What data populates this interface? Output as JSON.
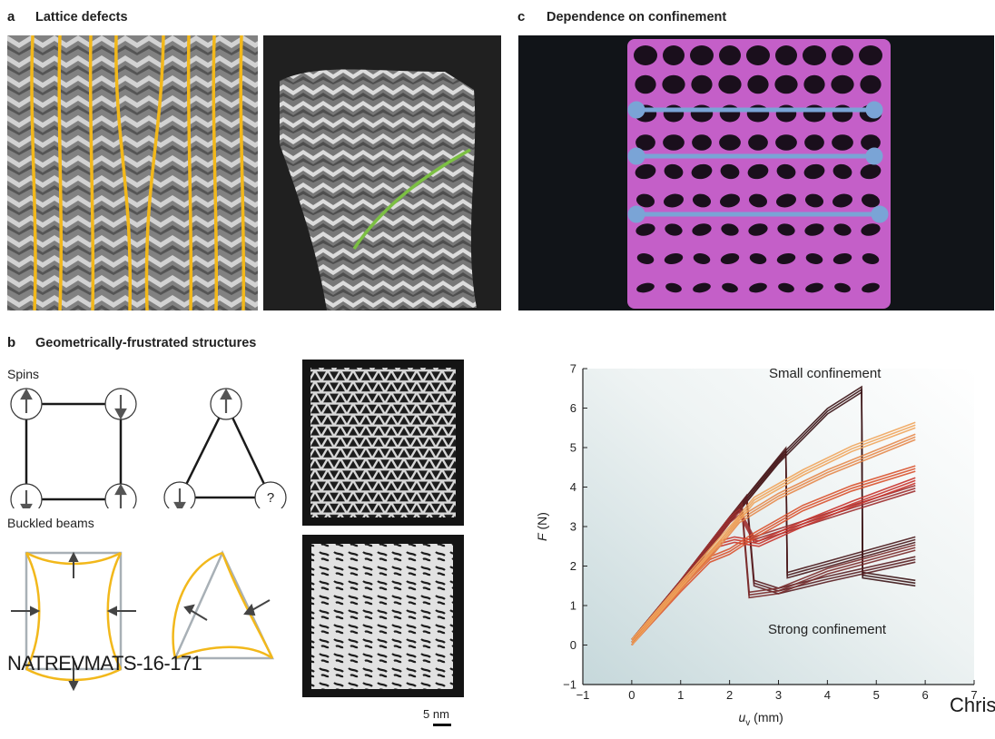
{
  "panel_a": {
    "letter": "a",
    "title": "Lattice defects"
  },
  "panel_b": {
    "letter": "b",
    "title": "Geometrically-frustrated structures",
    "spins_label": "Spins",
    "buckled_label": "Buckled beams",
    "unknown_spin": "?",
    "scale_bar": "5 nm"
  },
  "panel_c": {
    "letter": "c",
    "title": "Dependence on confinement"
  },
  "watermark": "NATREVMATS-16-171",
  "watermark_right": "Chris",
  "colors": {
    "gold": "#f2b81b",
    "green": "#7cc043",
    "magenta": "#c45fc8",
    "blue_strap": "#7aa4d6",
    "dark_curve": "#3b1416",
    "orange_curve": "#f0a55c",
    "red_curve": "#c8332b"
  },
  "chart_data": {
    "type": "line",
    "xlabel": "u_v (mm)",
    "ylabel": "F (N)",
    "xlim": [
      -1,
      7
    ],
    "ylim": [
      -1,
      7
    ],
    "xticks": [
      -1,
      0,
      1,
      2,
      3,
      4,
      5,
      6,
      7
    ],
    "yticks": [
      -1,
      0,
      1,
      2,
      3,
      4,
      5,
      6,
      7
    ],
    "annotations": [
      "Small confinement",
      "Strong confinement"
    ],
    "series": [
      {
        "x": [
          0,
          1,
          2,
          3,
          4,
          4.7,
          4.72,
          5.8
        ],
        "y": [
          0,
          1.5,
          3.1,
          4.6,
          5.85,
          6.4,
          1.7,
          1.5
        ],
        "color": "#3b1416"
      },
      {
        "x": [
          0,
          1,
          2,
          3.15,
          3.18,
          5.8
        ],
        "y": [
          0,
          1.5,
          3.1,
          4.85,
          1.7,
          2.6
        ],
        "color": "#4a1a1c"
      },
      {
        "x": [
          0,
          1,
          2,
          2.35,
          2.5,
          3.0,
          4.0,
          5.8
        ],
        "y": [
          0,
          1.5,
          3.1,
          3.65,
          1.5,
          1.3,
          1.6,
          2.1
        ],
        "color": "#5a1f22"
      },
      {
        "x": [
          0,
          1,
          2,
          2.25,
          2.4,
          3.0,
          4.0,
          5.8
        ],
        "y": [
          0,
          1.5,
          3.1,
          3.45,
          1.2,
          1.3,
          1.8,
          2.4
        ],
        "color": "#7a2b2b"
      },
      {
        "x": [
          0,
          1,
          2,
          2.2,
          2.5,
          3.5,
          4.5,
          5.8
        ],
        "y": [
          0,
          1.5,
          3.1,
          3.3,
          2.6,
          3.0,
          3.4,
          3.9
        ],
        "color": "#9e3030"
      },
      {
        "x": [
          0,
          1,
          1.8,
          2.1,
          2.6,
          3.5,
          4.5,
          5.8
        ],
        "y": [
          0,
          1.4,
          2.5,
          2.6,
          2.5,
          3.0,
          3.5,
          4.1
        ],
        "color": "#c8332b"
      },
      {
        "x": [
          0,
          1,
          1.6,
          2.0,
          2.5,
          3.5,
          4.5,
          5.8
        ],
        "y": [
          0,
          1.35,
          2.1,
          2.3,
          2.7,
          3.4,
          3.9,
          4.4
        ],
        "color": "#d9532f"
      },
      {
        "x": [
          0,
          1,
          1.6,
          2.2,
          3.0,
          4.0,
          5.0,
          5.8
        ],
        "y": [
          0,
          1.4,
          2.2,
          3.1,
          3.7,
          4.3,
          4.8,
          5.2
        ],
        "color": "#e68a4d"
      },
      {
        "x": [
          0,
          1,
          1.6,
          2.1,
          2.5,
          3.5,
          4.5,
          5.8
        ],
        "y": [
          0,
          1.45,
          2.3,
          3.0,
          3.6,
          4.3,
          4.9,
          5.5
        ],
        "color": "#f0a55c"
      }
    ]
  }
}
